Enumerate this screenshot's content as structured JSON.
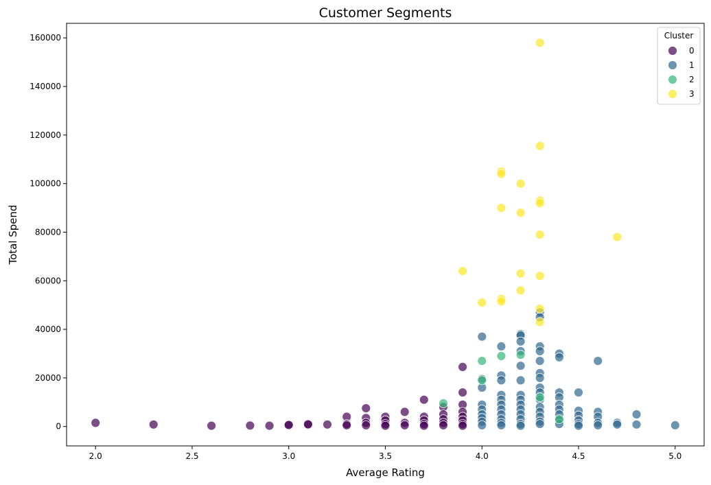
{
  "chart_data": {
    "type": "scatter",
    "title": "Customer Segments",
    "xlabel": "Average Rating",
    "ylabel": "Total Spend",
    "xlim": [
      1.85,
      5.15
    ],
    "ylim": [
      -8000,
      166000
    ],
    "x_ticks": [
      "2.0",
      "2.5",
      "3.0",
      "3.5",
      "4.0",
      "4.5",
      "5.0"
    ],
    "y_ticks": [
      "0",
      "20000",
      "40000",
      "60000",
      "80000",
      "100000",
      "120000",
      "140000",
      "160000"
    ],
    "grid": false,
    "legend": {
      "title": "Cluster",
      "position": "top-right"
    },
    "series": [
      {
        "name": "0",
        "color": "#440154",
        "points": [
          [
            2.0,
            1500
          ],
          [
            2.3,
            800
          ],
          [
            2.6,
            300
          ],
          [
            2.8,
            400
          ],
          [
            2.9,
            300
          ],
          [
            3.0,
            800
          ],
          [
            3.0,
            600
          ],
          [
            3.1,
            700
          ],
          [
            3.1,
            900
          ],
          [
            3.2,
            800
          ],
          [
            3.3,
            4000
          ],
          [
            3.3,
            1000
          ],
          [
            3.3,
            500
          ],
          [
            3.4,
            7500
          ],
          [
            3.4,
            3500
          ],
          [
            3.4,
            1500
          ],
          [
            3.4,
            500
          ],
          [
            3.5,
            4000
          ],
          [
            3.5,
            2500
          ],
          [
            3.5,
            1000
          ],
          [
            3.5,
            300
          ],
          [
            3.6,
            6000
          ],
          [
            3.6,
            1500
          ],
          [
            3.6,
            500
          ],
          [
            3.7,
            11000
          ],
          [
            3.7,
            4000
          ],
          [
            3.7,
            2500
          ],
          [
            3.7,
            1000
          ],
          [
            3.7,
            300
          ],
          [
            3.8,
            8000
          ],
          [
            3.8,
            5000
          ],
          [
            3.8,
            3000
          ],
          [
            3.8,
            1500
          ],
          [
            3.8,
            500
          ],
          [
            3.9,
            24500
          ],
          [
            3.9,
            14000
          ],
          [
            3.9,
            9000
          ],
          [
            3.9,
            6000
          ],
          [
            3.9,
            4000
          ],
          [
            3.9,
            2500
          ],
          [
            3.9,
            1000
          ],
          [
            3.9,
            300
          ]
        ]
      },
      {
        "name": "1",
        "color": "#31688e",
        "points": [
          [
            4.0,
            37000
          ],
          [
            4.0,
            19500
          ],
          [
            4.0,
            16000
          ],
          [
            4.0,
            9000
          ],
          [
            4.0,
            7000
          ],
          [
            4.0,
            5000
          ],
          [
            4.0,
            3500
          ],
          [
            4.0,
            2000
          ],
          [
            4.0,
            500
          ],
          [
            4.1,
            33000
          ],
          [
            4.1,
            21000
          ],
          [
            4.1,
            19000
          ],
          [
            4.1,
            13000
          ],
          [
            4.1,
            11000
          ],
          [
            4.1,
            9000
          ],
          [
            4.1,
            7000
          ],
          [
            4.1,
            5000
          ],
          [
            4.1,
            3000
          ],
          [
            4.1,
            1500
          ],
          [
            4.1,
            500
          ],
          [
            4.2,
            38000
          ],
          [
            4.2,
            37500
          ],
          [
            4.2,
            35000
          ],
          [
            4.2,
            31000
          ],
          [
            4.2,
            25000
          ],
          [
            4.2,
            19000
          ],
          [
            4.2,
            13000
          ],
          [
            4.2,
            11000
          ],
          [
            4.2,
            9000
          ],
          [
            4.2,
            7000
          ],
          [
            4.2,
            5000
          ],
          [
            4.2,
            3000
          ],
          [
            4.2,
            1000
          ],
          [
            4.2,
            300
          ],
          [
            4.3,
            47000
          ],
          [
            4.3,
            45000
          ],
          [
            4.3,
            33000
          ],
          [
            4.3,
            31000
          ],
          [
            4.3,
            27000
          ],
          [
            4.3,
            22000
          ],
          [
            4.3,
            20000
          ],
          [
            4.3,
            16000
          ],
          [
            4.3,
            14000
          ],
          [
            4.3,
            11000
          ],
          [
            4.3,
            8000
          ],
          [
            4.3,
            6000
          ],
          [
            4.3,
            4000
          ],
          [
            4.3,
            2000
          ],
          [
            4.3,
            1000
          ],
          [
            4.4,
            30000
          ],
          [
            4.4,
            28500
          ],
          [
            4.4,
            14000
          ],
          [
            4.4,
            12000
          ],
          [
            4.4,
            9000
          ],
          [
            4.4,
            7000
          ],
          [
            4.4,
            5000
          ],
          [
            4.4,
            2500
          ],
          [
            4.4,
            1000
          ],
          [
            4.5,
            14000
          ],
          [
            4.5,
            6500
          ],
          [
            4.5,
            4500
          ],
          [
            4.5,
            2500
          ],
          [
            4.5,
            1000
          ],
          [
            4.5,
            300
          ],
          [
            4.6,
            27000
          ],
          [
            4.6,
            6000
          ],
          [
            4.6,
            4000
          ],
          [
            4.6,
            1500
          ],
          [
            4.6,
            500
          ],
          [
            4.7,
            1500
          ],
          [
            4.7,
            800
          ],
          [
            4.8,
            5000
          ],
          [
            4.8,
            800
          ],
          [
            5.0,
            500
          ]
        ]
      },
      {
        "name": "2",
        "color": "#35b779",
        "points": [
          [
            3.8,
            9500
          ],
          [
            4.0,
            27000
          ],
          [
            4.0,
            19000
          ],
          [
            4.1,
            29000
          ],
          [
            4.2,
            29500
          ],
          [
            4.3,
            12000
          ],
          [
            4.4,
            3000
          ]
        ]
      },
      {
        "name": "3",
        "color": "#fde725",
        "points": [
          [
            3.9,
            64000
          ],
          [
            4.0,
            51000
          ],
          [
            4.1,
            105000
          ],
          [
            4.1,
            104000
          ],
          [
            4.1,
            90000
          ],
          [
            4.1,
            52500
          ],
          [
            4.1,
            51500
          ],
          [
            4.2,
            100000
          ],
          [
            4.2,
            88000
          ],
          [
            4.2,
            63000
          ],
          [
            4.2,
            56000
          ],
          [
            4.3,
            158000
          ],
          [
            4.3,
            115500
          ],
          [
            4.3,
            93000
          ],
          [
            4.3,
            92000
          ],
          [
            4.3,
            79000
          ],
          [
            4.3,
            62000
          ],
          [
            4.3,
            48500
          ],
          [
            4.3,
            43000
          ],
          [
            4.7,
            78000
          ]
        ]
      }
    ]
  }
}
